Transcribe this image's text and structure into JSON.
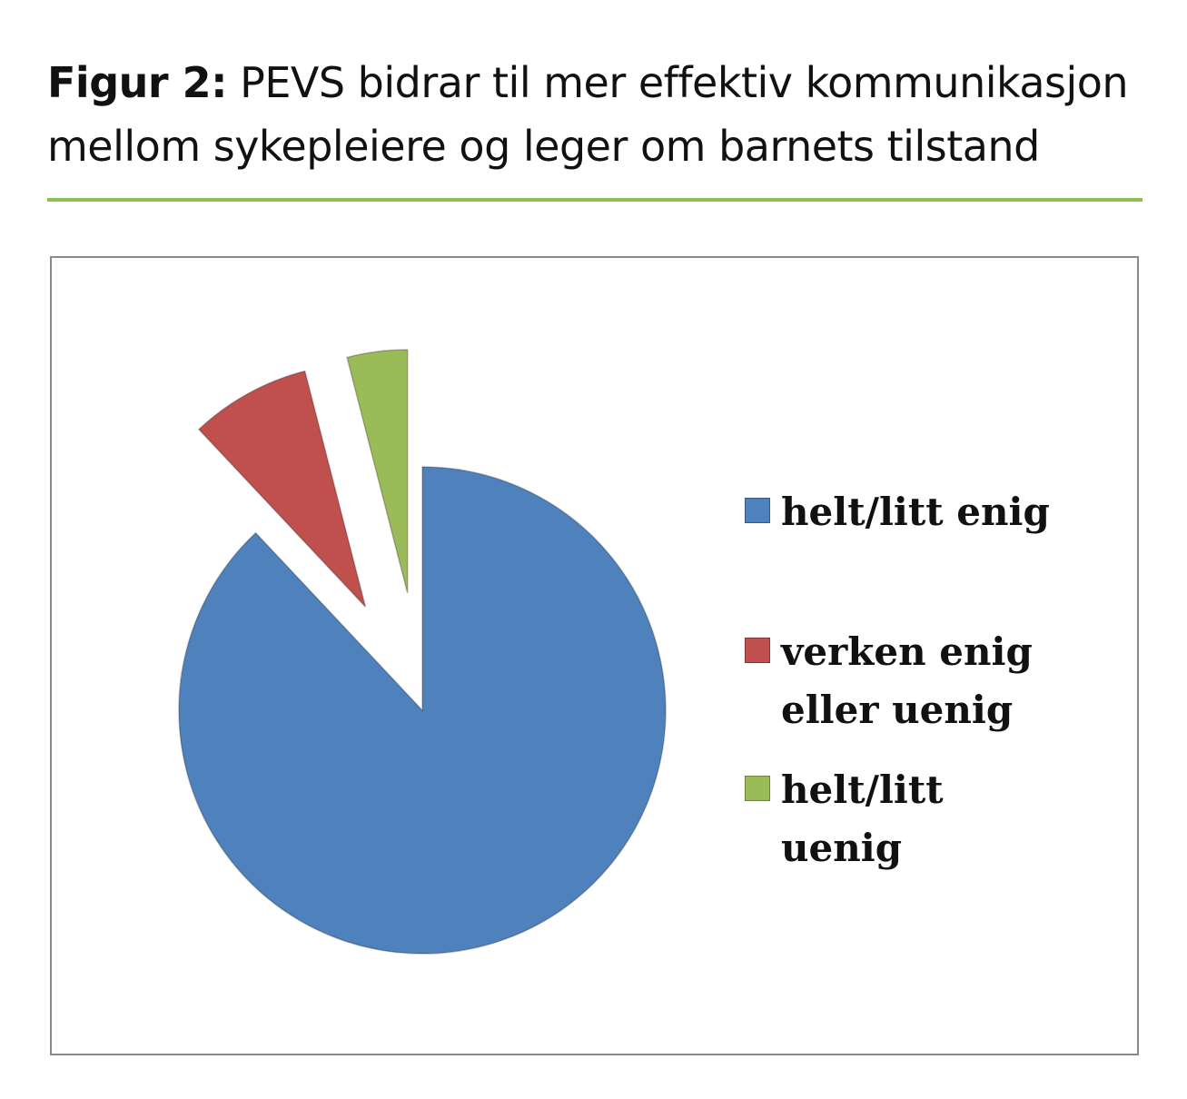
{
  "header": {
    "figure_label": "Figur 2:",
    "title": " PEVS bidrar til mer effektiv kommunikasjon mellom sykepleiere og leger om barnets tilstand"
  },
  "chart_data": {
    "type": "pie",
    "title": "Figur 2: PEVS bidrar til mer effektiv kommunikasjon mellom sykepleiere og leger om barnets tilstand",
    "categories": [
      "helt/litt enig",
      "verken enig eller uenig",
      "helt/litt uenig"
    ],
    "values": [
      88,
      8,
      4
    ],
    "unit": "%",
    "colors": [
      "#4f81bd",
      "#c0504d",
      "#9bbb59"
    ],
    "exploded": [
      false,
      true,
      true
    ],
    "start_angle": "12 o'clock",
    "direction": "clockwise",
    "legend_position": "right"
  }
}
